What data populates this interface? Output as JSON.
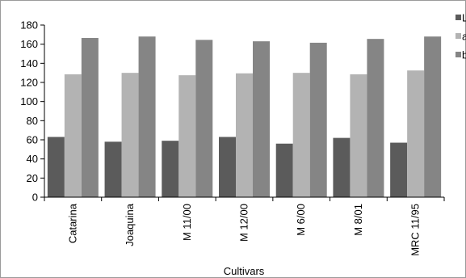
{
  "chart_data": {
    "type": "bar",
    "title": "",
    "xlabel": "Cultivars",
    "ylabel": "",
    "categories": [
      "Catarina",
      "Joaquina",
      "M 11/00",
      "M 12/00",
      "M 6/00",
      "M 8/01",
      "MRC 11/95"
    ],
    "series": [
      {
        "name": "L",
        "color": "#5b5b5b",
        "values": [
          63,
          58,
          59,
          63,
          56,
          62,
          57
        ]
      },
      {
        "name": "a",
        "color": "#b3b3b3",
        "values": [
          128.5,
          130,
          127.5,
          129.5,
          130,
          128.5,
          132.5
        ]
      },
      {
        "name": "b",
        "color": "#858585",
        "values": [
          166.5,
          168,
          164.5,
          163,
          161.5,
          165.5,
          168
        ]
      }
    ],
    "yticks": [
      0,
      20,
      40,
      60,
      80,
      100,
      120,
      140,
      160,
      180
    ],
    "ylim": [
      0,
      180
    ],
    "grid": false,
    "legend_position": "right"
  }
}
